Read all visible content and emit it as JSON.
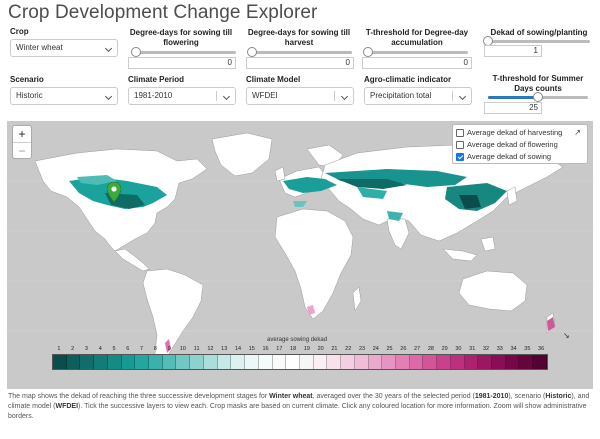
{
  "title": "Crop Development Change Explorer",
  "controls": {
    "crop": {
      "label": "Crop",
      "value": "Winter wheat"
    },
    "dd_flowering": {
      "label": "Degree-days for sowing till flowering",
      "value": "0"
    },
    "dd_harvest": {
      "label": "Degree-days for sowing till harvest",
      "value": "0"
    },
    "t_threshold": {
      "label": "T-threshold for Degree-day accumulation",
      "value": "0"
    },
    "dekad_sowing": {
      "label": "Dekad of sowing/planting",
      "value": "1"
    },
    "scenario": {
      "label": "Scenario",
      "value": "Historic"
    },
    "climate_period": {
      "label": "Climate Period",
      "value": "1981-2010"
    },
    "climate_model": {
      "label": "Climate Model",
      "value": "WFDEI"
    },
    "agro_indicator": {
      "label": "Agro-climatic indicator",
      "value": "Precipitation total"
    },
    "t_summer": {
      "label": "T-threshold for Summer Days counts",
      "value": "25",
      "fraction": 0.5
    }
  },
  "map": {
    "zoom_in": "+",
    "zoom_out": "−",
    "layers": [
      {
        "label": "Average dekad of harvesting",
        "checked": false
      },
      {
        "label": "Average dekad of flowering",
        "checked": false
      },
      {
        "label": "Average dekad of sowing",
        "checked": true
      }
    ],
    "legend": {
      "title": "average sowing dekad",
      "ticks": [
        "1",
        "2",
        "3",
        "4",
        "5",
        "6",
        "7",
        "8",
        "9",
        "10",
        "11",
        "12",
        "13",
        "14",
        "15",
        "16",
        "17",
        "18",
        "19",
        "20",
        "21",
        "22",
        "23",
        "24",
        "25",
        "26",
        "27",
        "28",
        "29",
        "30",
        "31",
        "32",
        "33",
        "34",
        "35",
        "36"
      ],
      "colors": [
        "#0b4d4d",
        "#0e5e5c",
        "#106d69",
        "#127c77",
        "#148b85",
        "#189a94",
        "#24a6a0",
        "#3bb1ac",
        "#55bcb8",
        "#71c7c4",
        "#8ed2d0",
        "#abdddb",
        "#c6e8e7",
        "#dcf1f0",
        "#ecf7f7",
        "#f5fafa",
        "#fafafa",
        "#ffffff",
        "#f6f6f6",
        "#fbeef5",
        "#f8e0ec",
        "#f4cfe3",
        "#f0bdd9",
        "#eca9ce",
        "#e894c2",
        "#e27fb5",
        "#dc69a8",
        "#d4549a",
        "#c9418c",
        "#bc307e",
        "#ac2270",
        "#9b1762",
        "#890e55",
        "#760848",
        "#64053c",
        "#520331"
      ]
    }
  },
  "description": {
    "p1": "The map shows the dekad of reaching the three successive development stages for ",
    "crop": "Winter wheat",
    "p2": ", averaged over the 30 years of the selected period (",
    "period": "1981-2010",
    "p3": "), scenario (",
    "scenario": "Historic",
    "p4": "), and climate model (",
    "model": "WFDEI",
    "p5": "). Tick the successive layers to view each. Crop masks are based on current climate. Click any coloured location for more information. Zoom will show administrative borders."
  }
}
